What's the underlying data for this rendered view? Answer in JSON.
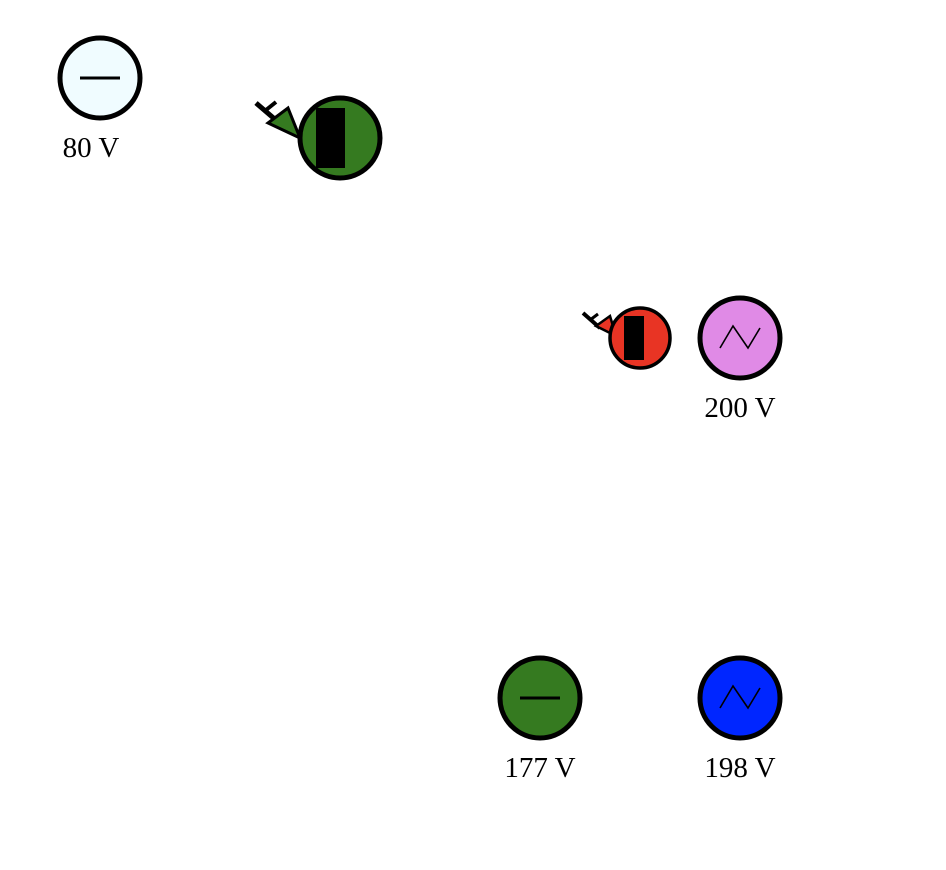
{
  "components": [
    {
      "kind": "dc-source",
      "icon": "dc-source-icon",
      "label": "80 V",
      "color": "#f0fcff"
    },
    {
      "kind": "photo-sensor",
      "icon": "photodiode-icon",
      "label": "",
      "color": "#357a20"
    },
    {
      "kind": "photo-sensor",
      "icon": "photodiode-icon",
      "label": "",
      "color": "#e83424"
    },
    {
      "kind": "ac-source",
      "icon": "ac-source-icon",
      "label": "200 V",
      "color": "#e08ae6"
    },
    {
      "kind": "dc-source",
      "icon": "dc-source-icon",
      "label": "177 V",
      "color": "#357a20"
    },
    {
      "kind": "ac-source",
      "icon": "ac-source-icon",
      "label": "198 V",
      "color": "#0026ff"
    }
  ]
}
